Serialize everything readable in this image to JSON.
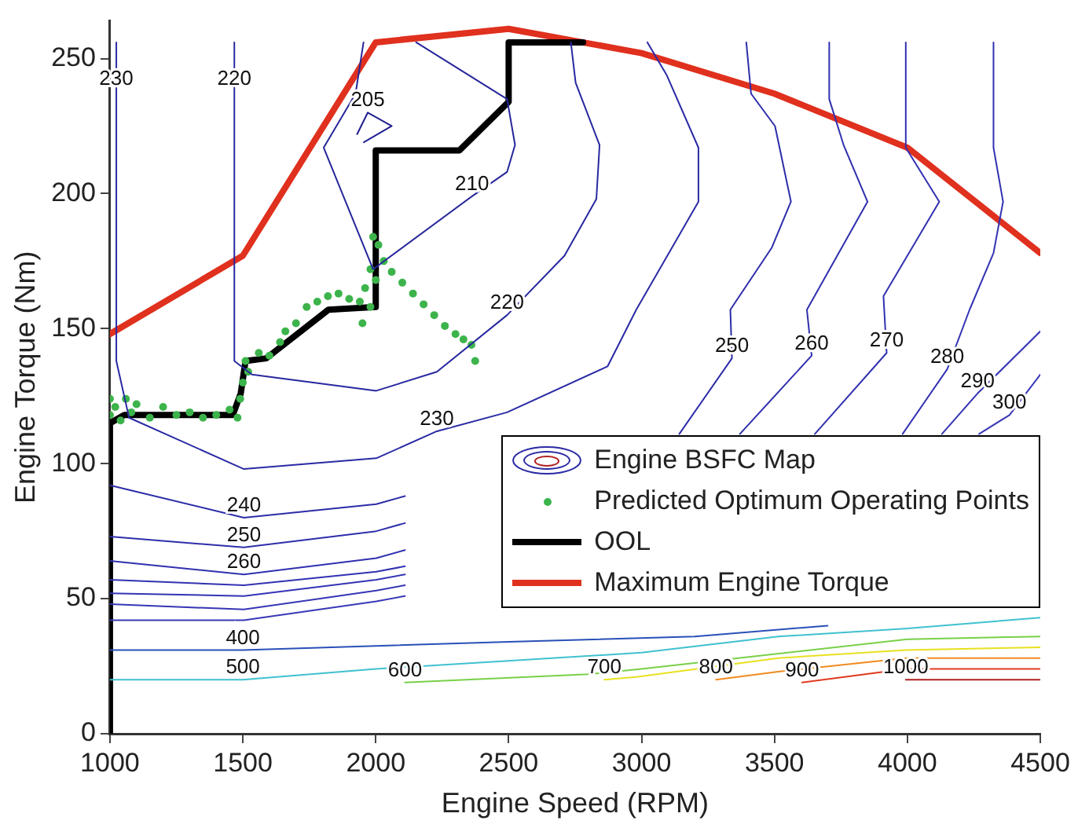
{
  "chart_data": {
    "type": "line",
    "xlabel": "Engine Speed (RPM)",
    "ylabel": "Engine Torque (Nm)",
    "xlim": [
      1000,
      4500
    ],
    "ylim": [
      0,
      264
    ],
    "xticks": [
      1000,
      1500,
      2000,
      2500,
      3000,
      3500,
      4000,
      4500
    ],
    "yticks": [
      0,
      50,
      100,
      150,
      200,
      250
    ],
    "legend": "bottom right",
    "grid": false,
    "series": [
      {
        "name": "Engine BSFC Map",
        "color": "#2a2aa4",
        "x": [
          1024,
          1024,
          1072,
          1504,
          2002,
          2230,
          2494,
          2872,
          2980,
          3214,
          3214,
          3094,
          3022
        ],
        "values": [
          256,
          138,
          117,
          98,
          102,
          112,
          119,
          136,
          157,
          197,
          217,
          244,
          256
        ]
      },
      {
        "color": "#2828a0",
        "x": [
          1468,
          1468,
          1534,
          2002,
          2230,
          2494,
          2710,
          2830,
          2842,
          2752,
          2734
        ],
        "values": [
          256,
          138,
          133,
          127,
          134,
          155,
          177,
          198,
          218,
          241,
          256
        ]
      },
      {
        "color": "#26269a",
        "x": [
          1954,
          1924,
          1804,
          1990,
          2362,
          2494,
          2524,
          2494,
          2152
        ],
        "values": [
          256,
          237,
          217,
          172,
          199,
          208,
          218,
          235,
          256
        ]
      },
      {
        "color": "#202090",
        "x": [
          1930,
          1970,
          2060,
          1955
        ],
        "values": [
          222,
          230,
          225,
          219
        ]
      },
      {
        "color": "#2c2ca8",
        "x": [
          1000,
          1504,
          2002,
          2110
        ],
        "values": [
          92,
          80,
          85,
          88
        ]
      },
      {
        "color": "#2e2eac",
        "x": [
          1000,
          1504,
          2002,
          2110
        ],
        "values": [
          73,
          69,
          75,
          78
        ]
      },
      {
        "color": "#3030b0",
        "x": [
          1000,
          1504,
          2002,
          2110
        ],
        "values": [
          64,
          59,
          65,
          68
        ]
      },
      {
        "color": "#3232b2",
        "x": [
          1000,
          1504,
          2002,
          2110
        ],
        "values": [
          57,
          55,
          60,
          62
        ]
      },
      {
        "color": "#3434b4",
        "x": [
          1000,
          1504,
          2002,
          2110
        ],
        "values": [
          52,
          51,
          57,
          59
        ]
      },
      {
        "color": "#3636b6",
        "x": [
          1000,
          1504,
          2002,
          2110
        ],
        "values": [
          48,
          46,
          53,
          55
        ]
      },
      {
        "color": "#3838b8",
        "x": [
          1000,
          1504,
          2002,
          2110
        ],
        "values": [
          42,
          42,
          49,
          51
        ]
      },
      {
        "color": "#2d2daa",
        "x": [
          3394,
          3412,
          3502,
          3562,
          3490,
          3334,
          3340,
          3142
        ],
        "values": [
          256,
          237,
          225,
          197,
          180,
          157,
          139,
          111
        ]
      },
      {
        "color": "#2f2fae",
        "x": [
          3706,
          3706,
          3760,
          3850,
          3622,
          3640,
          3370
        ],
        "values": [
          256,
          235,
          218,
          197,
          157,
          140,
          111
        ]
      },
      {
        "color": "#3131b1",
        "x": [
          3994,
          3994,
          4120,
          3910,
          3922,
          3652
        ],
        "values": [
          256,
          217,
          197,
          162,
          141,
          111
        ]
      },
      {
        "color": "#3333b3",
        "x": [
          4324,
          4324,
          4360,
          4324,
          4234,
          4150,
          3982
        ],
        "values": [
          256,
          217,
          197,
          178,
          157,
          135,
          111
        ]
      },
      {
        "color": "#3535b5",
        "x": [
          4500,
          4264,
          4130
        ],
        "values": [
          149,
          126,
          111
        ]
      },
      {
        "color": "#3737b7",
        "x": [
          4500,
          4384,
          4270
        ],
        "values": [
          133,
          118,
          111
        ]
      },
      {
        "color": "#2850b8",
        "x": [
          1000,
          1500,
          2500,
          3200,
          3700
        ],
        "values": [
          31,
          31,
          34,
          36,
          40
        ]
      },
      {
        "color": "#40c0d0",
        "x": [
          1000,
          1500,
          2000,
          3000,
          3514,
          4000,
          4500
        ],
        "values": [
          20,
          20,
          24,
          30,
          36,
          39,
          43
        ]
      },
      {
        "color": "#78d048",
        "x": [
          2110,
          2800,
          3000,
          4000,
          4500
        ],
        "values": [
          19,
          22,
          24,
          35,
          36
        ]
      },
      {
        "color": "#e8e020",
        "x": [
          2860,
          2980,
          3514,
          3994,
          4500
        ],
        "values": [
          20,
          21,
          28,
          31,
          32
        ]
      },
      {
        "color": "#f08a20",
        "x": [
          3280,
          3514,
          3994,
          4500
        ],
        "values": [
          20,
          23,
          28,
          28
        ]
      },
      {
        "color": "#e03a20",
        "x": [
          3604,
          3994,
          4500
        ],
        "values": [
          19,
          24,
          24
        ]
      },
      {
        "color": "#b02020",
        "x": [
          3994,
          4500
        ],
        "values": [
          20,
          20
        ]
      },
      {
        "name": "Predicted Optimum Operating Points",
        "type": "scatter",
        "marker": "circle",
        "color": "#3cb44b",
        "x": [
          1000,
          1000,
          1020,
          1040,
          1060,
          1080,
          1100,
          1150,
          1200,
          1250,
          1300,
          1350,
          1400,
          1450,
          1480,
          1490,
          1500,
          1510,
          1520,
          1560,
          1600,
          1640,
          1660,
          1700,
          1740,
          1780,
          1820,
          1860,
          1900,
          1940,
          1950,
          1960,
          1980,
          1980,
          1990,
          2000,
          2010,
          2030,
          2060,
          2100,
          2140,
          2180,
          2220,
          2260,
          2300,
          2330,
          2360,
          2374
        ],
        "values": [
          118,
          124,
          121,
          116,
          124,
          119,
          122,
          117,
          121,
          118,
          119,
          117,
          118,
          120,
          117,
          124,
          130,
          138,
          134,
          141,
          140,
          145,
          149,
          152,
          158,
          160,
          162,
          163,
          161,
          160,
          152,
          165,
          158,
          172,
          184,
          168,
          181,
          175,
          171,
          167,
          163,
          159,
          155,
          151,
          148,
          146,
          144,
          138
        ]
      },
      {
        "name": "OOL",
        "type": "line",
        "color": "#000000",
        "x": [
          1000,
          1000,
          1054,
          1462,
          1492,
          1510,
          1588,
          1822,
          2000,
          2000,
          2315,
          2500,
          2500,
          2780
        ],
        "values": [
          0,
          115,
          118,
          118,
          126,
          138,
          139,
          157,
          158,
          216,
          216,
          234,
          256,
          256
        ]
      },
      {
        "name": "Maximum Engine Torque",
        "type": "line",
        "color": "#e0301e",
        "x": [
          1000,
          1500,
          2000,
          2500,
          3000,
          3500,
          4000,
          4500
        ],
        "values": [
          148,
          177,
          256,
          261,
          252,
          237,
          217,
          178
        ]
      }
    ],
    "annotations": [
      {
        "text": "230",
        "x": 1024,
        "y": 238
      },
      {
        "text": "220",
        "x": 1468,
        "y": 238
      },
      {
        "text": "205",
        "x": 1970,
        "y": 230
      },
      {
        "text": "210",
        "x": 2362,
        "y": 199
      },
      {
        "text": "220",
        "x": 2494,
        "y": 155
      },
      {
        "text": "230",
        "x": 2230,
        "y": 112
      },
      {
        "text": "240",
        "x": 1504,
        "y": 80
      },
      {
        "text": "250",
        "x": 1504,
        "y": 69
      },
      {
        "text": "260",
        "x": 1504,
        "y": 59
      },
      {
        "text": "250",
        "x": 3340,
        "y": 139
      },
      {
        "text": "260",
        "x": 3640,
        "y": 140
      },
      {
        "text": "270",
        "x": 3922,
        "y": 141
      },
      {
        "text": "280",
        "x": 4150,
        "y": 135
      },
      {
        "text": "290",
        "x": 4264,
        "y": 126
      },
      {
        "text": "300",
        "x": 4384,
        "y": 118
      },
      {
        "text": "400",
        "x": 1500,
        "y": 31
      },
      {
        "text": "500",
        "x": 1500,
        "y": 20
      },
      {
        "text": "600",
        "x": 2110,
        "y": 19
      },
      {
        "text": "700",
        "x": 2860,
        "y": 20
      },
      {
        "text": "800",
        "x": 3280,
        "y": 20
      },
      {
        "text": "900",
        "x": 3604,
        "y": 19
      },
      {
        "text": "1000",
        "x": 3994,
        "y": 20
      }
    ]
  }
}
